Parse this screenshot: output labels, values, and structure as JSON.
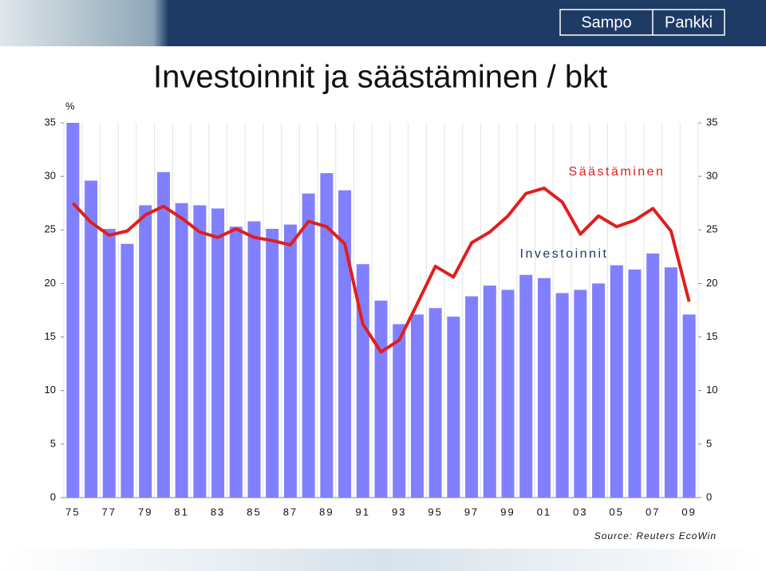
{
  "header": {
    "logo": [
      "Sampo",
      "Pankki"
    ]
  },
  "chart_data": {
    "type": "bar-line",
    "title": "Investoinnit ja säästäminen / bkt",
    "y_unit": "%",
    "source": "Source: Reuters EcoWin",
    "categories": [
      "75",
      null,
      "77",
      null,
      "79",
      null,
      "81",
      null,
      "83",
      null,
      "85",
      null,
      "87",
      null,
      "89",
      null,
      "91",
      null,
      "93",
      null,
      "95",
      null,
      "97",
      null,
      "99",
      null,
      "01",
      null,
      "03",
      null,
      "05",
      null,
      "07",
      null,
      "09"
    ],
    "series": [
      {
        "name": "Investoinnit",
        "kind": "bar",
        "color": "#8080ff",
        "values": [
          35,
          29.6,
          25.1,
          23.7,
          27.3,
          30.4,
          27.5,
          27.3,
          27.0,
          25.3,
          25.8,
          25.1,
          25.5,
          28.4,
          30.3,
          28.7,
          21.8,
          18.4,
          16.2,
          17.1,
          17.7,
          16.9,
          18.8,
          19.8,
          19.4,
          20.8,
          20.5,
          19.1,
          19.4,
          20.0,
          21.7,
          21.3,
          22.8,
          21.5,
          17.1
        ]
      },
      {
        "name": "Säästäminen",
        "kind": "line",
        "color": "#e01e1e",
        "values": [
          27.5,
          25.7,
          24.5,
          24.9,
          26.4,
          27.2,
          26.1,
          24.8,
          24.3,
          25.1,
          24.3,
          24.0,
          23.6,
          25.8,
          25.3,
          23.7,
          16.2,
          13.6,
          14.7,
          18.1,
          21.6,
          20.6,
          23.8,
          24.8,
          26.3,
          28.4,
          28.9,
          27.6,
          24.6,
          26.3,
          25.3,
          25.9,
          27.0,
          24.9,
          18.3
        ]
      }
    ],
    "ylim": [
      0,
      35
    ],
    "yticks": [
      0,
      5,
      10,
      15,
      20,
      25,
      30,
      35
    ],
    "y2lim": [
      0,
      35
    ],
    "y2ticks": [
      0,
      5,
      10,
      15,
      20,
      25,
      30,
      35
    ]
  }
}
